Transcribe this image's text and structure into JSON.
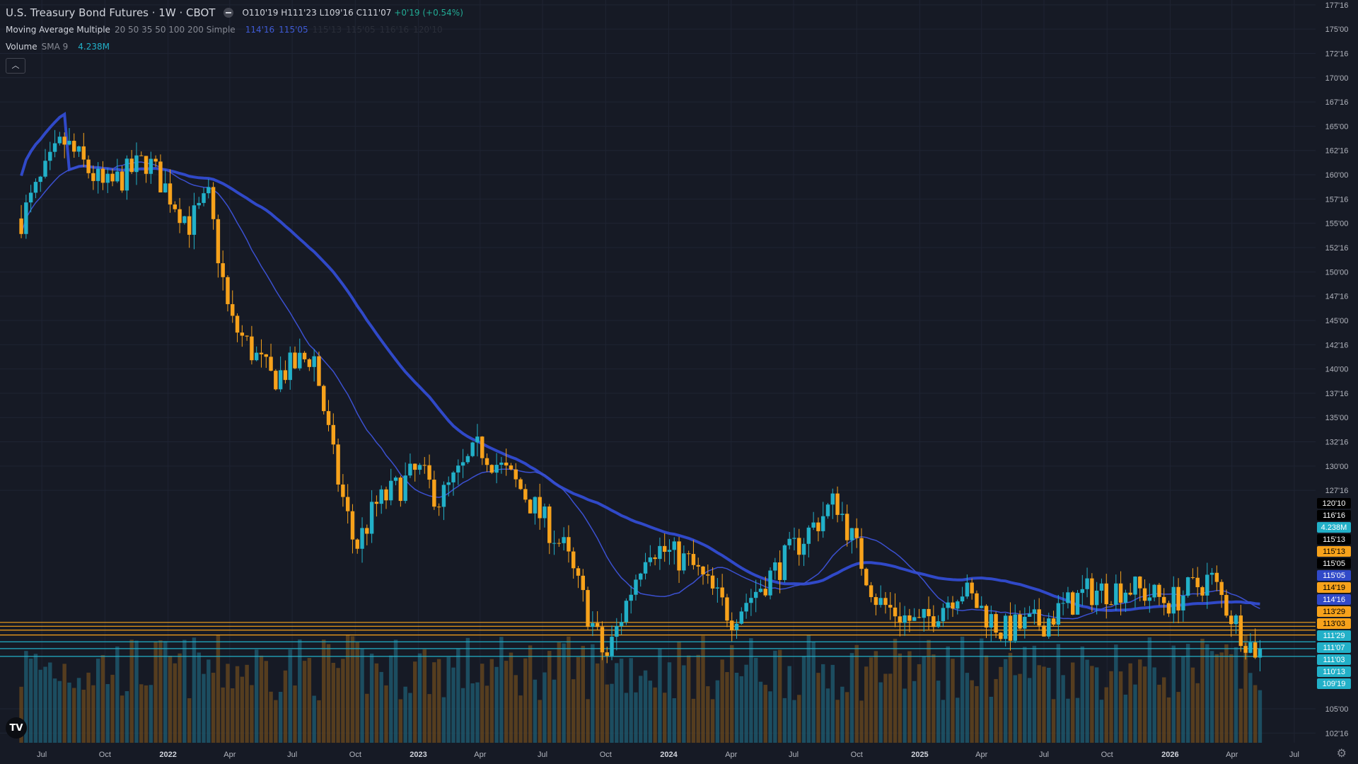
{
  "header": {
    "title": "U.S. Treasury Bond Futures · 1W · CBOT",
    "ohlc": {
      "o_label": "O",
      "o": "110'19",
      "h_label": "H",
      "h": "111'23",
      "l_label": "L",
      "l": "109'16",
      "c_label": "C",
      "c": "111'07",
      "change": "+0'19 (+0.54%)"
    },
    "ma_label": "Moving Average Multiple",
    "ma_params": "20 50 35 50 100 200 Simple",
    "ma_values": [
      "114'16",
      "115'05",
      "115'13",
      "115'05",
      "116'16",
      "120'10"
    ],
    "volume_label": "Volume",
    "volume_params": "SMA 9",
    "volume_value": "4.238M"
  },
  "colors": {
    "background": "#161a25",
    "up": "#22b0c8",
    "down": "#f7a21b",
    "ma_thick": "#3049c8",
    "ma_thin": "#3b50d0",
    "grid": "#1f2433",
    "text": "#b2b5be"
  },
  "icons": {
    "collapse": "minus-circle-icon",
    "toggle": "chevron-up-icon",
    "logo": "tradingview-logo",
    "settings": "gear-icon"
  },
  "chart_data": {
    "type": "candlestick",
    "y_axis_ticks": [
      "177'16",
      "175'00",
      "172'16",
      "170'00",
      "167'16",
      "165'00",
      "162'16",
      "160'00",
      "157'16",
      "155'00",
      "152'16",
      "150'00",
      "147'16",
      "145'00",
      "142'16",
      "140'00",
      "137'16",
      "135'00",
      "132'16",
      "130'00",
      "127'16",
      "105'00",
      "102'16"
    ],
    "x_axis_ticks": [
      "Jul",
      "Oct",
      "2022",
      "Apr",
      "Jul",
      "Oct",
      "2023",
      "Apr",
      "Jul",
      "Oct",
      "2024",
      "Apr",
      "Jul",
      "Oct",
      "2025",
      "Apr",
      "Jul",
      "Oct",
      "2026",
      "Apr",
      "Jul"
    ],
    "price_tags": [
      {
        "label": "120'10",
        "style": "black"
      },
      {
        "label": "116'16",
        "style": "black"
      },
      {
        "label": "4.238M",
        "style": "cyan"
      },
      {
        "label": "115'13",
        "style": "black"
      },
      {
        "label": "115'13",
        "style": "orange"
      },
      {
        "label": "115'05",
        "style": "black"
      },
      {
        "label": "115'05",
        "style": "blue"
      },
      {
        "label": "114'19",
        "style": "orange"
      },
      {
        "label": "114'16",
        "style": "blue"
      },
      {
        "label": "113'29",
        "style": "orange"
      },
      {
        "label": "113'03",
        "style": "orange"
      },
      {
        "label": "111'29",
        "style": "cyan"
      },
      {
        "label": "111'07",
        "style": "cyan"
      },
      {
        "label": "111'03",
        "style": "cyan"
      },
      {
        "label": "110'13",
        "style": "cyan"
      },
      {
        "label": "109'19",
        "style": "cyan"
      }
    ],
    "horizontal_levels": [
      {
        "value": 113.9,
        "color": "orange"
      },
      {
        "value": 113.5,
        "color": "orange"
      },
      {
        "value": 113.1,
        "color": "orange"
      },
      {
        "value": 112.6,
        "color": "orange"
      },
      {
        "value": 111.9,
        "color": "cyan"
      },
      {
        "value": 111.2,
        "color": "cyan"
      },
      {
        "value": 110.4,
        "color": "cyan"
      }
    ],
    "weekly_closes_anchor": [
      {
        "date": "2021-06",
        "close": 155.5
      },
      {
        "date": "2021-08",
        "close": 163.5
      },
      {
        "date": "2021-10",
        "close": 158.5
      },
      {
        "date": "2021-12",
        "close": 161.5
      },
      {
        "date": "2022-02",
        "close": 155.0
      },
      {
        "date": "2022-03",
        "close": 157.5
      },
      {
        "date": "2022-04",
        "close": 145.0
      },
      {
        "date": "2022-06",
        "close": 139.0
      },
      {
        "date": "2022-08",
        "close": 141.5
      },
      {
        "date": "2022-09",
        "close": 130.0
      },
      {
        "date": "2022-10",
        "close": 121.5
      },
      {
        "date": "2022-11",
        "close": 126.0
      },
      {
        "date": "2023-01",
        "close": 129.5
      },
      {
        "date": "2023-02",
        "close": 126.5
      },
      {
        "date": "2023-04",
        "close": 132.0
      },
      {
        "date": "2023-06",
        "close": 127.5
      },
      {
        "date": "2023-08",
        "close": 121.5
      },
      {
        "date": "2023-10",
        "close": 110.0
      },
      {
        "date": "2023-12",
        "close": 122.0
      },
      {
        "date": "2024-02",
        "close": 120.0
      },
      {
        "date": "2024-04",
        "close": 114.5
      },
      {
        "date": "2024-06",
        "close": 119.0
      },
      {
        "date": "2024-09",
        "close": 126.5
      },
      {
        "date": "2024-11",
        "close": 116.0
      },
      {
        "date": "2025-01",
        "close": 113.5
      },
      {
        "date": "2025-03",
        "close": 117.5
      },
      {
        "date": "2025-05",
        "close": 113.0
      },
      {
        "date": "2025-07",
        "close": 114.0
      },
      {
        "date": "2025-09",
        "close": 117.0
      },
      {
        "date": "2025-11",
        "close": 117.5
      },
      {
        "date": "2026-01",
        "close": 116.0
      },
      {
        "date": "2026-03",
        "close": 118.5
      },
      {
        "date": "2026-04",
        "close": 114.5
      },
      {
        "date": "2026-05",
        "close": 111.2
      }
    ],
    "ylim": [
      101.5,
      178.0
    ]
  }
}
